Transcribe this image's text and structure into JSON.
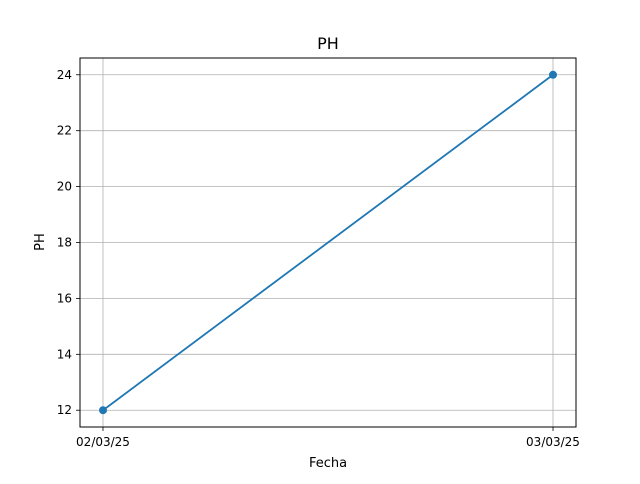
{
  "chart_data": {
    "type": "line",
    "title": "PH",
    "xlabel": "Fecha",
    "ylabel": "PH",
    "x": [
      "02/03/25",
      "03/03/25"
    ],
    "series": [
      {
        "values": [
          12,
          24
        ]
      }
    ],
    "xticks": [
      "02/03/25",
      "03/03/25"
    ],
    "yticks": [
      12,
      14,
      16,
      18,
      20,
      22,
      24
    ],
    "ylim": [
      11.4,
      24.6
    ],
    "grid": true,
    "markers": true,
    "colors": {
      "line": "#1f77b4",
      "grid": "#b0b0b0",
      "axis": "#000000"
    }
  }
}
